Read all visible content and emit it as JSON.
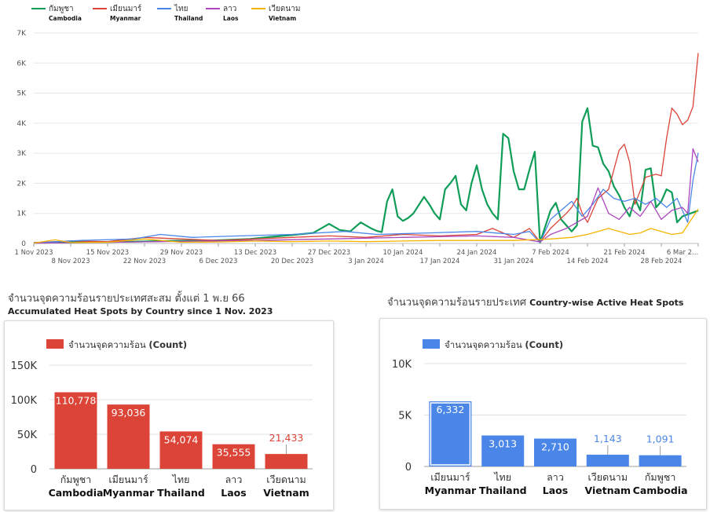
{
  "chart_data": [
    {
      "id": "daily",
      "type": "line",
      "legend_position": "top-left",
      "grid": true,
      "ylim": [
        0,
        7000
      ],
      "yticks": [
        0,
        1000,
        2000,
        3000,
        4000,
        5000,
        6000,
        7000
      ],
      "ytick_labels": [
        "0",
        "1K",
        "2K",
        "3K",
        "4K",
        "5K",
        "6K",
        "7K"
      ],
      "x_start": "2023-11-01",
      "x_end": "2024-03-06",
      "xticks_upper": [
        {
          "date": "2023-11-01",
          "label": "1 Nov 2023"
        },
        {
          "date": "2023-11-15",
          "label": "15 Nov 2023"
        },
        {
          "date": "2023-11-29",
          "label": "29 Nov 2023"
        },
        {
          "date": "2023-12-13",
          "label": "13 Dec 2023"
        },
        {
          "date": "2023-12-27",
          "label": "27 Dec 2023"
        },
        {
          "date": "2024-01-10",
          "label": "10 Jan 2024"
        },
        {
          "date": "2024-01-24",
          "label": "24 Jan 2024"
        },
        {
          "date": "2024-02-07",
          "label": "7 Feb 2024"
        },
        {
          "date": "2024-02-21",
          "label": "21 Feb 2024"
        },
        {
          "date": "2024-03-06",
          "label": "6 Mar 2..."
        }
      ],
      "xticks_lower": [
        {
          "date": "2023-11-08",
          "label": "8 Nov 2023"
        },
        {
          "date": "2023-11-22",
          "label": "22 Nov 2023"
        },
        {
          "date": "2023-12-06",
          "label": "6 Dec 2023"
        },
        {
          "date": "2023-12-20",
          "label": "20 Dec 2023"
        },
        {
          "date": "2024-01-03",
          "label": "3 Jan 2024"
        },
        {
          "date": "2024-01-17",
          "label": "17 Jan 2024"
        },
        {
          "date": "2024-01-31",
          "label": "31 Jan 2024"
        },
        {
          "date": "2024-02-14",
          "label": "14 Feb 2024"
        },
        {
          "date": "2024-02-28",
          "label": "28 Feb 2024"
        }
      ],
      "series": [
        {
          "name": "กัมพูชา",
          "name_en": "Cambodia",
          "color": "#0f9d58",
          "points": [
            [
              "2023-11-01",
              20
            ],
            [
              "2023-11-10",
              40
            ],
            [
              "2023-11-20",
              60
            ],
            [
              "2023-11-28",
              90
            ],
            [
              "2023-12-05",
              100
            ],
            [
              "2023-12-12",
              150
            ],
            [
              "2023-12-16",
              220
            ],
            [
              "2023-12-20",
              280
            ],
            [
              "2023-12-24",
              350
            ],
            [
              "2023-12-27",
              650
            ],
            [
              "2023-12-29",
              450
            ],
            [
              "2023-12-31",
              400
            ],
            [
              "2024-01-02",
              700
            ],
            [
              "2024-01-04",
              500
            ],
            [
              "2024-01-05",
              420
            ],
            [
              "2024-01-06",
              380
            ],
            [
              "2024-01-07",
              1400
            ],
            [
              "2024-01-08",
              1800
            ],
            [
              "2024-01-09",
              900
            ],
            [
              "2024-01-10",
              750
            ],
            [
              "2024-01-11",
              850
            ],
            [
              "2024-01-12",
              1000
            ],
            [
              "2024-01-14",
              1550
            ],
            [
              "2024-01-15",
              1300
            ],
            [
              "2024-01-16",
              1000
            ],
            [
              "2024-01-17",
              800
            ],
            [
              "2024-01-18",
              1800
            ],
            [
              "2024-01-19",
              2000
            ],
            [
              "2024-01-20",
              2250
            ],
            [
              "2024-01-21",
              1300
            ],
            [
              "2024-01-22",
              1100
            ],
            [
              "2024-01-23",
              2000
            ],
            [
              "2024-01-24",
              2600
            ],
            [
              "2024-01-25",
              1800
            ],
            [
              "2024-01-26",
              1300
            ],
            [
              "2024-01-27",
              1000
            ],
            [
              "2024-01-28",
              800
            ],
            [
              "2024-01-29",
              3650
            ],
            [
              "2024-01-30",
              3500
            ],
            [
              "2024-01-31",
              2400
            ],
            [
              "2024-02-01",
              1800
            ],
            [
              "2024-02-02",
              1800
            ],
            [
              "2024-02-03",
              2450
            ],
            [
              "2024-02-04",
              3050
            ],
            [
              "2024-02-05",
              30
            ],
            [
              "2024-02-07",
              1100
            ],
            [
              "2024-02-08",
              1350
            ],
            [
              "2024-02-09",
              800
            ],
            [
              "2024-02-10",
              600
            ],
            [
              "2024-02-11",
              400
            ],
            [
              "2024-02-12",
              600
            ],
            [
              "2024-02-13",
              4050
            ],
            [
              "2024-02-14",
              4500
            ],
            [
              "2024-02-15",
              3250
            ],
            [
              "2024-02-16",
              3200
            ],
            [
              "2024-02-17",
              2650
            ],
            [
              "2024-02-18",
              2400
            ],
            [
              "2024-02-19",
              1900
            ],
            [
              "2024-02-20",
              1600
            ],
            [
              "2024-02-21",
              1200
            ],
            [
              "2024-02-22",
              900
            ],
            [
              "2024-02-23",
              1500
            ],
            [
              "2024-02-24",
              1100
            ],
            [
              "2024-02-25",
              2450
            ],
            [
              "2024-02-26",
              2500
            ],
            [
              "2024-02-27",
              1200
            ],
            [
              "2024-02-28",
              1400
            ],
            [
              "2024-02-29",
              1800
            ],
            [
              "2024-03-01",
              1700
            ],
            [
              "2024-03-02",
              700
            ],
            [
              "2024-03-03",
              900
            ],
            [
              "2024-03-06",
              1091
            ]
          ]
        },
        {
          "name": "เมียนมาร์",
          "name_en": "Myanmar",
          "color": "#db4437",
          "points": [
            [
              "2023-11-01",
              30
            ],
            [
              "2023-11-08",
              80
            ],
            [
              "2023-11-15",
              60
            ],
            [
              "2023-11-22",
              200
            ],
            [
              "2023-11-29",
              150
            ],
            [
              "2023-12-06",
              100
            ],
            [
              "2023-12-13",
              150
            ],
            [
              "2023-12-20",
              200
            ],
            [
              "2023-12-27",
              250
            ],
            [
              "2024-01-03",
              200
            ],
            [
              "2024-01-10",
              300
            ],
            [
              "2024-01-17",
              250
            ],
            [
              "2024-01-24",
              300
            ],
            [
              "2024-01-27",
              500
            ],
            [
              "2024-01-31",
              200
            ],
            [
              "2024-02-03",
              500
            ],
            [
              "2024-02-05",
              50
            ],
            [
              "2024-02-07",
              500
            ],
            [
              "2024-02-10",
              1000
            ],
            [
              "2024-02-11",
              1200
            ],
            [
              "2024-02-12",
              1500
            ],
            [
              "2024-02-13",
              1000
            ],
            [
              "2024-02-14",
              700
            ],
            [
              "2024-02-16",
              1500
            ],
            [
              "2024-02-18",
              1800
            ],
            [
              "2024-02-20",
              3100
            ],
            [
              "2024-02-21",
              3300
            ],
            [
              "2024-02-22",
              2700
            ],
            [
              "2024-02-23",
              1300
            ],
            [
              "2024-02-25",
              2200
            ],
            [
              "2024-02-27",
              2300
            ],
            [
              "2024-02-28",
              2250
            ],
            [
              "2024-02-29",
              3500
            ],
            [
              "2024-03-01",
              4500
            ],
            [
              "2024-03-02",
              4300
            ],
            [
              "2024-03-03",
              3950
            ],
            [
              "2024-03-04",
              4100
            ],
            [
              "2024-03-05",
              4550
            ],
            [
              "2024-03-06",
              6332
            ]
          ]
        },
        {
          "name": "ไทย",
          "name_en": "Thailand",
          "color": "#4a86e8",
          "points": [
            [
              "2023-11-01",
              20
            ],
            [
              "2023-11-10",
              100
            ],
            [
              "2023-11-20",
              150
            ],
            [
              "2023-11-25",
              300
            ],
            [
              "2023-12-01",
              200
            ],
            [
              "2023-12-10",
              250
            ],
            [
              "2023-12-20",
              300
            ],
            [
              "2023-12-30",
              400
            ],
            [
              "2024-01-05",
              300
            ],
            [
              "2024-01-15",
              350
            ],
            [
              "2024-01-24",
              400
            ],
            [
              "2024-01-31",
              300
            ],
            [
              "2024-02-03",
              400
            ],
            [
              "2024-02-05",
              30
            ],
            [
              "2024-02-07",
              800
            ],
            [
              "2024-02-09",
              1100
            ],
            [
              "2024-02-11",
              1400
            ],
            [
              "2024-02-13",
              900
            ],
            [
              "2024-02-15",
              1300
            ],
            [
              "2024-02-17",
              1800
            ],
            [
              "2024-02-19",
              1500
            ],
            [
              "2024-02-21",
              1400
            ],
            [
              "2024-02-23",
              1500
            ],
            [
              "2024-02-25",
              1300
            ],
            [
              "2024-02-27",
              1500
            ],
            [
              "2024-02-29",
              1200
            ],
            [
              "2024-03-02",
              1500
            ],
            [
              "2024-03-04",
              700
            ],
            [
              "2024-03-05",
              2100
            ],
            [
              "2024-03-06",
              3013
            ]
          ]
        },
        {
          "name": "ลาว",
          "name_en": "Laos",
          "color": "#ab47bc",
          "points": [
            [
              "2023-11-01",
              10
            ],
            [
              "2023-11-15",
              40
            ],
            [
              "2023-11-29",
              70
            ],
            [
              "2023-12-13",
              100
            ],
            [
              "2023-12-27",
              150
            ],
            [
              "2024-01-10",
              200
            ],
            [
              "2024-01-24",
              250
            ],
            [
              "2024-01-31",
              200
            ],
            [
              "2024-02-05",
              50
            ],
            [
              "2024-02-07",
              300
            ],
            [
              "2024-02-10",
              500
            ],
            [
              "2024-02-12",
              700
            ],
            [
              "2024-02-14",
              900
            ],
            [
              "2024-02-16",
              1850
            ],
            [
              "2024-02-18",
              1000
            ],
            [
              "2024-02-20",
              800
            ],
            [
              "2024-02-22",
              1200
            ],
            [
              "2024-02-24",
              900
            ],
            [
              "2024-02-26",
              1400
            ],
            [
              "2024-02-28",
              800
            ],
            [
              "2024-03-01",
              1100
            ],
            [
              "2024-03-03",
              1200
            ],
            [
              "2024-03-04",
              1000
            ],
            [
              "2024-03-05",
              3150
            ],
            [
              "2024-03-06",
              2710
            ]
          ]
        },
        {
          "name": "เวียดนาม",
          "name_en": "Vietnam",
          "color": "#f4b400",
          "points": [
            [
              "2023-11-01",
              10
            ],
            [
              "2023-11-05",
              120
            ],
            [
              "2023-11-08",
              30
            ],
            [
              "2023-11-15",
              40
            ],
            [
              "2023-11-22",
              150
            ],
            [
              "2023-11-29",
              40
            ],
            [
              "2023-12-06",
              50
            ],
            [
              "2023-12-13",
              80
            ],
            [
              "2023-12-20",
              60
            ],
            [
              "2023-12-27",
              80
            ],
            [
              "2024-01-03",
              60
            ],
            [
              "2024-01-10",
              80
            ],
            [
              "2024-01-17",
              100
            ],
            [
              "2024-01-24",
              100
            ],
            [
              "2024-01-31",
              100
            ],
            [
              "2024-02-07",
              150
            ],
            [
              "2024-02-11",
              200
            ],
            [
              "2024-02-14",
              300
            ],
            [
              "2024-02-18",
              500
            ],
            [
              "2024-02-20",
              400
            ],
            [
              "2024-02-22",
              300
            ],
            [
              "2024-02-24",
              350
            ],
            [
              "2024-02-26",
              500
            ],
            [
              "2024-02-28",
              400
            ],
            [
              "2024-03-01",
              300
            ],
            [
              "2024-03-03",
              350
            ],
            [
              "2024-03-06",
              1143
            ]
          ]
        }
      ]
    },
    {
      "id": "accumulated",
      "type": "bar",
      "title_th": "จำนวนจุดความร้อนรายประเทศสะสม ตั้งแต่ 1 พ.ย 66",
      "title_en": "Accumulated Heat Spots by Country since 1 Nov. 2023",
      "legend_label": "จำนวนจุดความร้อน",
      "legend_label_en": "(Count)",
      "legend_position": "top-left",
      "color": "#db4437",
      "grid": true,
      "ylim": [
        0,
        150000
      ],
      "yticks": [
        0,
        50000,
        100000,
        150000
      ],
      "ytick_labels": [
        "0",
        "50K",
        "100K",
        "150K"
      ],
      "categories": [
        {
          "th": "กัมพูชา",
          "en": "Cambodia"
        },
        {
          "th": "เมียนมาร์",
          "en": "Myanmar"
        },
        {
          "th": "ไทย",
          "en": "Thailand"
        },
        {
          "th": "ลาว",
          "en": "Laos"
        },
        {
          "th": "เวียดนาม",
          "en": "Vietnam"
        }
      ],
      "values": [
        110778,
        93036,
        54074,
        35555,
        21433
      ],
      "value_labels": [
        "110,778",
        "93,036",
        "54,074",
        "35,555",
        "21,433"
      ]
    },
    {
      "id": "active",
      "type": "bar",
      "title_th": "จำนวนจุดความร้อนรายประเทศ",
      "title_en": "Country-wise Active Heat Spots",
      "legend_label": "จำนวนจุดความร้อน",
      "legend_label_en": "(Count)",
      "legend_position": "top-left",
      "color": "#4a86e8",
      "grid": true,
      "ylim": [
        0,
        10000
      ],
      "yticks": [
        0,
        5000,
        10000
      ],
      "ytick_labels": [
        "0",
        "5K",
        "10K"
      ],
      "categories": [
        {
          "th": "เมียนมาร์",
          "en": "Myanmar"
        },
        {
          "th": "ไทย",
          "en": "Thailand"
        },
        {
          "th": "ลาว",
          "en": "Laos"
        },
        {
          "th": "เวียดนาม",
          "en": "Vietnam"
        },
        {
          "th": "กัมพูชา",
          "en": "Cambodia"
        }
      ],
      "values": [
        6332,
        3013,
        2710,
        1143,
        1091
      ],
      "value_labels": [
        "6,332",
        "3,013",
        "2,710",
        "1,143",
        "1,091"
      ]
    }
  ]
}
